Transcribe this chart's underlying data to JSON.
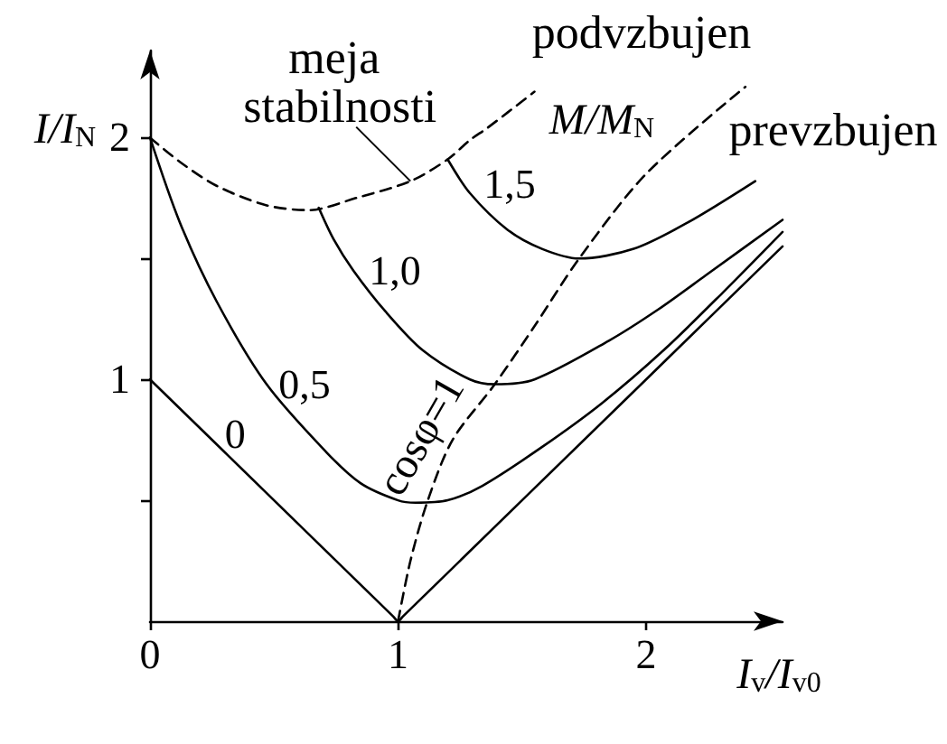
{
  "chart_data": {
    "type": "line",
    "xlabel": "I$_{v}$/I$_{v0}$",
    "ylabel": "I/I$_{N}$",
    "legend_title": "M/M$_{N}$",
    "annotations": [
      "podvzbujen",
      "prevzbujen"
    ],
    "xlim": [
      0,
      2.55
    ],
    "ylim": [
      0,
      2.36
    ],
    "xticks": [
      0,
      1,
      2
    ],
    "yticks": [
      {
        "value": 0.5,
        "label": null
      },
      1,
      {
        "value": 1.5,
        "label": null
      },
      2
    ],
    "marker": "none",
    "line_style": "solid",
    "series": [
      {
        "name": "0",
        "color": "#000000",
        "x": [
          0,
          0.3,
          0.98,
          1,
          1.02,
          2,
          2.55
        ],
        "values": [
          1,
          0.7,
          0.02,
          0,
          0.02,
          1,
          1.55
        ]
      },
      {
        "name": "0,5",
        "color": "#000000",
        "x": [
          0,
          0.12,
          0.27,
          0.47,
          0.71,
          0.85,
          1.0,
          1.07,
          1.2,
          1.34,
          1.58,
          1.82,
          2.07,
          2.31,
          2.55
        ],
        "values": [
          2,
          1.65,
          1.32,
          0.98,
          0.7,
          0.57,
          0.5,
          0.49,
          0.5,
          0.56,
          0.72,
          0.9,
          1.12,
          1.36,
          1.61
        ]
      },
      {
        "name": "1,0",
        "color": "#000000",
        "x": [
          0.68,
          0.74,
          0.82,
          0.95,
          1.1,
          1.29,
          1.39,
          1.55,
          1.85,
          2.05,
          2.24,
          2.55
        ],
        "values": [
          1.71,
          1.58,
          1.45,
          1.28,
          1.12,
          1.0,
          0.98,
          1.0,
          1.16,
          1.29,
          1.43,
          1.66
        ]
      },
      {
        "name": "1,5",
        "color": "#000000",
        "x": [
          1.2,
          1.29,
          1.44,
          1.58,
          1.73,
          1.95,
          2.17,
          2.44
        ],
        "values": [
          1.91,
          1.77,
          1.62,
          1.54,
          1.5,
          1.54,
          1.65,
          1.82
        ]
      },
      {
        "name": "meja stabilnosti",
        "color": "#000000",
        "line_style": "dashed",
        "x": [
          0,
          0.12,
          0.27,
          0.47,
          0.64,
          0.83,
          1.05,
          1.2,
          1.29,
          1.36,
          1.55
        ],
        "values": [
          2,
          1.9,
          1.8,
          1.72,
          1.7,
          1.75,
          1.82,
          1.91,
          1.99,
          2.04,
          2.19
        ]
      },
      {
        "name": "cosφ=1",
        "color": "#000000",
        "line_style": "dashed",
        "x": [
          1,
          1.05,
          1.12,
          1.22,
          1.39,
          1.55,
          1.73,
          2.0,
          2.4
        ],
        "values": [
          0,
          0.25,
          0.5,
          0.75,
          0.98,
          1.22,
          1.5,
          1.85,
          2.21
        ]
      }
    ]
  }
}
